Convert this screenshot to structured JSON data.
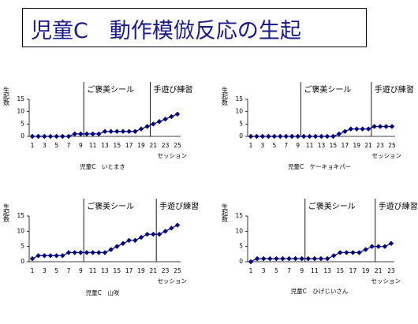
{
  "title": "児童C　動作模倣反応の生起",
  "chart_data": [
    {
      "type": "line",
      "caption": "児童C　いとまき",
      "xlabel": "セッション",
      "ylabel": "生起数",
      "color": "#000080",
      "x": [
        1,
        2,
        3,
        4,
        5,
        6,
        7,
        8,
        9,
        10,
        11,
        12,
        13,
        14,
        15,
        16,
        17,
        18,
        19,
        20,
        21,
        22,
        23,
        24,
        25
      ],
      "values": [
        0,
        0,
        0,
        0,
        0,
        0,
        0,
        1,
        1,
        1,
        1,
        1,
        2,
        2,
        2,
        2,
        2,
        2,
        3,
        4,
        5,
        6,
        7,
        8,
        9
      ],
      "xlim": [
        1,
        25
      ],
      "xticks": [
        1,
        3,
        5,
        7,
        9,
        11,
        13,
        15,
        17,
        19,
        21,
        23,
        25
      ],
      "ylim": [
        0,
        15
      ],
      "yticks": [
        0,
        5,
        10,
        15
      ],
      "phase_lines": [
        {
          "x": 9.5,
          "label": "ご褒美シール"
        },
        {
          "x": 20.5,
          "label": "手遊び練習"
        }
      ]
    },
    {
      "type": "line",
      "caption": "児童C　ケーキョキパー",
      "xlabel": "セッション",
      "ylabel": "生起数",
      "color": "#000080",
      "x": [
        1,
        2,
        3,
        4,
        5,
        6,
        7,
        8,
        9,
        10,
        11,
        12,
        13,
        14,
        15,
        16,
        17,
        18,
        19,
        20,
        21,
        22,
        23,
        24,
        25
      ],
      "values": [
        0,
        0,
        0,
        0,
        0,
        0,
        0,
        0,
        0,
        0,
        0,
        0,
        0,
        0,
        0,
        1,
        2,
        3,
        3,
        3,
        3,
        4,
        4,
        4,
        4
      ],
      "xlim": [
        1,
        25
      ],
      "xticks": [
        1,
        3,
        5,
        7,
        9,
        11,
        13,
        15,
        17,
        19,
        21,
        23,
        25
      ],
      "ylim": [
        0,
        15
      ],
      "yticks": [
        0,
        5,
        10,
        15
      ],
      "phase_lines": [
        {
          "x": 9.5,
          "label": "ご褒美シール"
        },
        {
          "x": 21.5,
          "label": "手遊び練習"
        }
      ]
    },
    {
      "type": "line",
      "caption": "児童C　山咲",
      "xlabel": "セッション",
      "ylabel": "生起数",
      "color": "#000080",
      "x": [
        1,
        2,
        3,
        4,
        5,
        6,
        7,
        8,
        9,
        10,
        11,
        12,
        13,
        14,
        15,
        16,
        17,
        18,
        19,
        20,
        21,
        22,
        23,
        24,
        25
      ],
      "values": [
        1,
        2,
        2,
        2,
        2,
        2,
        3,
        3,
        3,
        3,
        3,
        3,
        3,
        4,
        5,
        6,
        7,
        7,
        8,
        9,
        9,
        9,
        10,
        11,
        12
      ],
      "xlim": [
        1,
        25
      ],
      "xticks": [
        1,
        3,
        5,
        7,
        9,
        11,
        13,
        15,
        17,
        19,
        21,
        23,
        25
      ],
      "ylim": [
        0,
        15
      ],
      "yticks": [
        0,
        5,
        10,
        15
      ],
      "phase_lines": [
        {
          "x": 9.5,
          "label": "ご褒美シール"
        },
        {
          "x": 21.5,
          "label": "手遊び練習"
        }
      ]
    },
    {
      "type": "line",
      "caption": "児童C　ひげじいさん",
      "xlabel": "セッション",
      "ylabel": "生起数",
      "color": "#000080",
      "x": [
        1,
        2,
        3,
        4,
        5,
        6,
        7,
        8,
        9,
        10,
        11,
        12,
        13,
        14,
        15,
        16,
        17,
        18,
        19,
        20,
        21,
        22,
        23
      ],
      "values": [
        0,
        1,
        1,
        1,
        1,
        1,
        1,
        1,
        1,
        1,
        1,
        1,
        1,
        2,
        3,
        3,
        3,
        3,
        4,
        5,
        5,
        5,
        6
      ],
      "xlim": [
        1,
        23
      ],
      "xticks": [
        1,
        3,
        5,
        7,
        9,
        11,
        13,
        15,
        17,
        19,
        21,
        23
      ],
      "ylim": [
        0,
        15
      ],
      "yticks": [
        0,
        5,
        10,
        15
      ],
      "phase_lines": [
        {
          "x": 9.5,
          "label": "ご褒美シール"
        },
        {
          "x": 20.5,
          "label": "手遊び練習"
        }
      ]
    }
  ]
}
